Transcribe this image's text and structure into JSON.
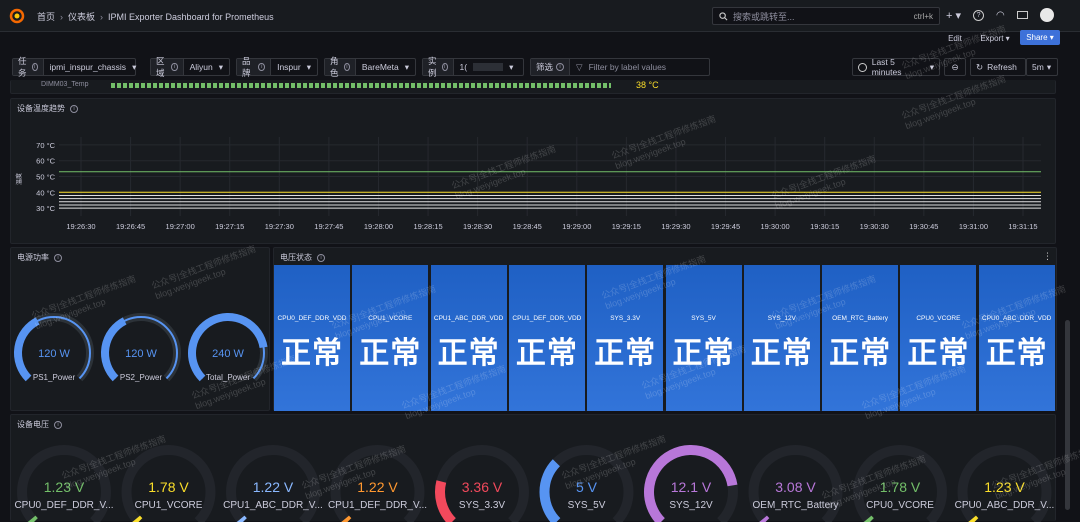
{
  "breadcrumb": {
    "home": "首页",
    "dashboards": "仪表板",
    "title": "IPMI Exporter Dashboard for Prometheus"
  },
  "search": {
    "placeholder": "搜索或跳转至...",
    "shortcut": "ctrl+k"
  },
  "toolbar": {
    "edit": "Edit",
    "export": "Export",
    "share": "Share"
  },
  "variables": [
    {
      "label": "任务",
      "value": "ipmi_inspur_chassis"
    },
    {
      "label": "区域",
      "value": "Aliyun"
    },
    {
      "label": "品牌",
      "value": "Inspur"
    },
    {
      "label": "角色",
      "value": "BareMeta"
    },
    {
      "label": "实例",
      "value": "1("
    },
    {
      "label": "筛选",
      "value": "Filter by label values"
    }
  ],
  "time": {
    "range": "Last 5 minutes",
    "refresh": "Refresh",
    "interval": "5m"
  },
  "partial_row": {
    "label": "DIMM03_Temp",
    "value": "38 °C"
  },
  "temp_panel": {
    "title": "设备温度趋势",
    "y_ticks": [
      "70 °C",
      "60 °C",
      "50 °C",
      "40 °C",
      "30 °C"
    ],
    "x_ticks": [
      "19:26:30",
      "19:26:45",
      "19:27:00",
      "19:27:15",
      "19:27:30",
      "19:27:45",
      "19:28:00",
      "19:28:15",
      "19:28:30",
      "19:28:45",
      "19:29:00",
      "19:29:15",
      "19:29:30",
      "19:29:45",
      "19:30:00",
      "19:30:15",
      "19:30:30",
      "19:30:45",
      "19:31:00",
      "19:31:15"
    ],
    "ylabel": "温度"
  },
  "chart_data": {
    "type": "line",
    "title": "设备温度趋势",
    "ylim": [
      25,
      75
    ],
    "x": [
      "19:26:30",
      "19:31:15"
    ],
    "series": [
      {
        "values": [
          53,
          53
        ],
        "color": "#73bf69"
      },
      {
        "values": [
          40,
          40
        ],
        "color": "#fade2a"
      },
      {
        "values": [
          38,
          38
        ],
        "color": "#e0e0e0"
      },
      {
        "values": [
          36,
          36
        ],
        "color": "#e0e0e0"
      },
      {
        "values": [
          34,
          34
        ],
        "color": "#e0e0e0"
      },
      {
        "values": [
          32,
          32
        ],
        "color": "#e0e0e0"
      },
      {
        "values": [
          30,
          30
        ],
        "color": "#e0e0e0"
      }
    ]
  },
  "power_panel": {
    "title": "电源功率",
    "gauges": [
      {
        "name": "PS1_Power",
        "value": "120 W",
        "fraction": 0.4
      },
      {
        "name": "PS2_Power",
        "value": "120 W",
        "fraction": 0.4
      },
      {
        "name": "Total_Power",
        "value": "240 W",
        "fraction": 0.8
      }
    ]
  },
  "voltage_status": {
    "title": "电压状态",
    "items": [
      {
        "name": "CPU0_DEF_DDR_VDD",
        "status": "正常"
      },
      {
        "name": "CPU1_VCORE",
        "status": "正常"
      },
      {
        "name": "CPU1_ABC_DDR_VDD",
        "status": "正常"
      },
      {
        "name": "CPU1_DEF_DDR_VDD",
        "status": "正常"
      },
      {
        "name": "SYS_3.3V",
        "status": "正常"
      },
      {
        "name": "SYS_5V",
        "status": "正常"
      },
      {
        "name": "SYS_12V",
        "status": "正常"
      },
      {
        "name": "OEM_RTC_Battery",
        "status": "正常"
      },
      {
        "name": "CPU0_VCORE",
        "status": "正常"
      },
      {
        "name": "CPU0_ABC_DDR_VDD",
        "status": "正常"
      }
    ]
  },
  "voltage_panel": {
    "title": "设备电压",
    "gauges": [
      {
        "name": "CPU0_DEF_DDR_V...",
        "value": "1.23 V",
        "color": "#73bf69",
        "arc": 0.0
      },
      {
        "name": "CPU1_VCORE",
        "value": "1.78 V",
        "color": "#fade2a",
        "arc": 0.0
      },
      {
        "name": "CPU1_ABC_DDR_V...",
        "value": "1.22 V",
        "color": "#8ab8ff",
        "arc": 0.0
      },
      {
        "name": "CPU1_DEF_DDR_V...",
        "value": "1.22 V",
        "color": "#ff9830",
        "arc": 0.0
      },
      {
        "name": "SYS_3.3V",
        "value": "3.36 V",
        "color": "#f2495c",
        "arc": 0.22
      },
      {
        "name": "SYS_5V",
        "value": "5 V",
        "color": "#5794f2",
        "arc": 0.33
      },
      {
        "name": "SYS_12V",
        "value": "12.1 V",
        "color": "#b877d9",
        "arc": 0.8
      },
      {
        "name": "OEM_RTC_Battery",
        "value": "3.08 V",
        "color": "#b877d9",
        "arc": 0.0
      },
      {
        "name": "CPU0_VCORE",
        "value": "1.78 V",
        "color": "#73bf69",
        "arc": 0.0
      },
      {
        "name": "CPU0_ABC_DDR_V...",
        "value": "1.23 V",
        "color": "#fade2a",
        "arc": 0.0
      }
    ]
  },
  "watermark": {
    "line1": "公众号|全栈工程师修炼指南",
    "line2": "blog.weiyigeek.top"
  }
}
